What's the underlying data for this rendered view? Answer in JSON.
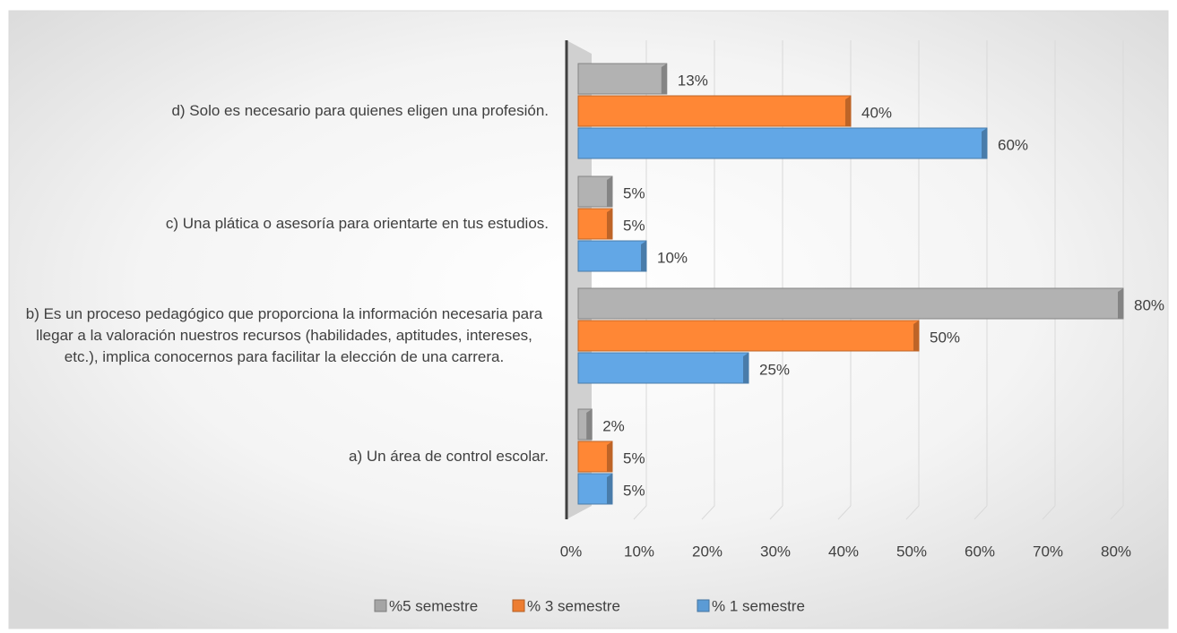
{
  "chart_data": {
    "type": "bar",
    "orientation": "horizontal",
    "categories": [
      "d) Solo es necesario para quienes eligen una profesión.",
      "c) Una plática o asesoría para orientarte en tus estudios.",
      "b) Es un proceso pedagógico que proporciona la información necesaria para llegar a la valoración nuestros recursos (habilidades, aptitudes, intereses, etc.), implica conocernos para facilitar la elección de una carrera.",
      "a) Un área de control escolar."
    ],
    "series": [
      {
        "name": "%5 semestre",
        "color": "#a5a5a5",
        "values": [
          13,
          5,
          80,
          2
        ],
        "value_labels": [
          "13%",
          "5%",
          "80%",
          "2%"
        ]
      },
      {
        "name": "% 3 semestre",
        "color": "#ed7d31",
        "values": [
          40,
          5,
          50,
          5
        ],
        "value_labels": [
          "40%",
          "5%",
          "50%",
          "5%"
        ]
      },
      {
        "name": "% 1 semestre",
        "color": "#5b9bd5",
        "values": [
          60,
          10,
          25,
          5
        ],
        "value_labels": [
          "60%",
          "10%",
          "25%",
          "5%"
        ]
      }
    ],
    "xlim": [
      0,
      80
    ],
    "xticks": [
      {
        "value": 0,
        "label": "0%"
      },
      {
        "value": 10,
        "label": "10%"
      },
      {
        "value": 20,
        "label": "20%"
      },
      {
        "value": 30,
        "label": "30%"
      },
      {
        "value": 40,
        "label": "40%"
      },
      {
        "value": 50,
        "label": "50%"
      },
      {
        "value": 60,
        "label": "60%"
      },
      {
        "value": 70,
        "label": "70%"
      },
      {
        "value": 80,
        "label": "80%"
      }
    ],
    "grid": true,
    "legend": "bottom"
  }
}
